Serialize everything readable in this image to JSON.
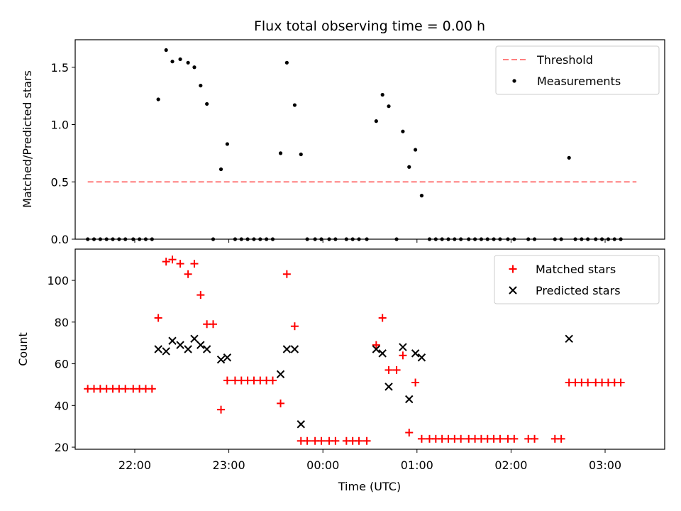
{
  "figure": {
    "title": "Flux total observing time = 0.00 h"
  },
  "chart_data": [
    {
      "type": "scatter",
      "ylabel": "Matched/Predicted stars",
      "xlabel": "",
      "xlim": [
        "21:22",
        "03:38"
      ],
      "ylim": [
        0,
        1.74
      ],
      "yticks": [
        0.0,
        0.5,
        1.0,
        1.5
      ],
      "ytick_labels": [
        "0.0",
        "0.5",
        "1.0",
        "1.5"
      ],
      "grid": false,
      "legend_position": "top-right",
      "series": [
        {
          "name": "Threshold",
          "kind": "dashed-line",
          "color": "#ff7f7f",
          "x": [
            "21:30",
            "03:20"
          ],
          "y": [
            0.5,
            0.5
          ]
        },
        {
          "name": "Measurements",
          "kind": "dot",
          "color": "#000000",
          "points": [
            [
              "21:30",
              0.0
            ],
            [
              "21:34",
              0.0
            ],
            [
              "21:38",
              0.0
            ],
            [
              "21:42",
              0.0
            ],
            [
              "21:46",
              0.0
            ],
            [
              "21:50",
              0.0
            ],
            [
              "21:54",
              0.0
            ],
            [
              "21:59",
              0.0
            ],
            [
              "22:03",
              0.0
            ],
            [
              "22:07",
              0.0
            ],
            [
              "22:11",
              0.0
            ],
            [
              "22:15",
              1.22
            ],
            [
              "22:20",
              1.65
            ],
            [
              "22:24",
              1.55
            ],
            [
              "22:29",
              1.57
            ],
            [
              "22:34",
              1.54
            ],
            [
              "22:38",
              1.5
            ],
            [
              "22:42",
              1.34
            ],
            [
              "22:46",
              1.18
            ],
            [
              "22:50",
              0.0
            ],
            [
              "22:55",
              0.61
            ],
            [
              "22:59",
              0.83
            ],
            [
              "23:04",
              0.0
            ],
            [
              "23:08",
              0.0
            ],
            [
              "23:12",
              0.0
            ],
            [
              "23:16",
              0.0
            ],
            [
              "23:20",
              0.0
            ],
            [
              "23:24",
              0.0
            ],
            [
              "23:28",
              0.0
            ],
            [
              "23:33",
              0.75
            ],
            [
              "23:37",
              1.54
            ],
            [
              "23:42",
              1.17
            ],
            [
              "23:46",
              0.74
            ],
            [
              "23:50",
              0.0
            ],
            [
              "23:55",
              0.0
            ],
            [
              "23:59",
              0.0
            ],
            [
              "00:04",
              0.0
            ],
            [
              "00:08",
              0.0
            ],
            [
              "00:15",
              0.0
            ],
            [
              "00:19",
              0.0
            ],
            [
              "00:23",
              0.0
            ],
            [
              "00:28",
              0.0
            ],
            [
              "00:34",
              1.03
            ],
            [
              "00:38",
              1.26
            ],
            [
              "00:42",
              1.16
            ],
            [
              "00:47",
              0.0
            ],
            [
              "00:51",
              0.94
            ],
            [
              "00:55",
              0.63
            ],
            [
              "00:59",
              0.78
            ],
            [
              "01:03",
              0.38
            ],
            [
              "01:08",
              0.0
            ],
            [
              "01:12",
              0.0
            ],
            [
              "01:16",
              0.0
            ],
            [
              "01:20",
              0.0
            ],
            [
              "01:24",
              0.0
            ],
            [
              "01:28",
              0.0
            ],
            [
              "01:33",
              0.0
            ],
            [
              "01:37",
              0.0
            ],
            [
              "01:41",
              0.0
            ],
            [
              "01:45",
              0.0
            ],
            [
              "01:49",
              0.0
            ],
            [
              "01:53",
              0.0
            ],
            [
              "01:58",
              0.0
            ],
            [
              "02:02",
              0.0
            ],
            [
              "02:11",
              0.0
            ],
            [
              "02:15",
              0.0
            ],
            [
              "02:28",
              0.0
            ],
            [
              "02:32",
              0.0
            ],
            [
              "02:37",
              0.71
            ],
            [
              "02:41",
              0.0
            ],
            [
              "02:45",
              0.0
            ],
            [
              "02:49",
              0.0
            ],
            [
              "02:54",
              0.0
            ],
            [
              "02:58",
              0.0
            ],
            [
              "03:02",
              0.0
            ],
            [
              "03:06",
              0.0
            ],
            [
              "03:10",
              0.0
            ]
          ]
        }
      ]
    },
    {
      "type": "scatter",
      "ylabel": "Count",
      "xlabel": "Time (UTC)",
      "xlim": [
        "21:22",
        "03:38"
      ],
      "ylim": [
        19,
        115
      ],
      "yticks": [
        20,
        40,
        60,
        80,
        100
      ],
      "ytick_labels": [
        "20",
        "40",
        "60",
        "80",
        "100"
      ],
      "xticks": [
        "22:00",
        "23:00",
        "00:00",
        "01:00",
        "02:00",
        "03:00"
      ],
      "xtick_labels": [
        "22:00",
        "23:00",
        "00:00",
        "01:00",
        "02:00",
        "03:00"
      ],
      "grid": false,
      "legend_position": "top-right",
      "series": [
        {
          "name": "Matched stars",
          "kind": "plus",
          "color": "#ff0000",
          "points": [
            [
              "21:30",
              48
            ],
            [
              "21:34",
              48
            ],
            [
              "21:38",
              48
            ],
            [
              "21:42",
              48
            ],
            [
              "21:46",
              48
            ],
            [
              "21:50",
              48
            ],
            [
              "21:54",
              48
            ],
            [
              "21:59",
              48
            ],
            [
              "22:03",
              48
            ],
            [
              "22:07",
              48
            ],
            [
              "22:11",
              48
            ],
            [
              "22:15",
              82
            ],
            [
              "22:20",
              109
            ],
            [
              "22:24",
              110
            ],
            [
              "22:29",
              108
            ],
            [
              "22:34",
              103
            ],
            [
              "22:38",
              108
            ],
            [
              "22:42",
              93
            ],
            [
              "22:46",
              79
            ],
            [
              "22:50",
              79
            ],
            [
              "22:55",
              38
            ],
            [
              "22:59",
              52
            ],
            [
              "23:04",
              52
            ],
            [
              "23:08",
              52
            ],
            [
              "23:12",
              52
            ],
            [
              "23:16",
              52
            ],
            [
              "23:20",
              52
            ],
            [
              "23:24",
              52
            ],
            [
              "23:28",
              52
            ],
            [
              "23:33",
              41
            ],
            [
              "23:37",
              103
            ],
            [
              "23:42",
              78
            ],
            [
              "23:46",
              23
            ],
            [
              "23:50",
              23
            ],
            [
              "23:55",
              23
            ],
            [
              "23:59",
              23
            ],
            [
              "00:04",
              23
            ],
            [
              "00:08",
              23
            ],
            [
              "00:15",
              23
            ],
            [
              "00:19",
              23
            ],
            [
              "00:23",
              23
            ],
            [
              "00:28",
              23
            ],
            [
              "00:34",
              69
            ],
            [
              "00:38",
              82
            ],
            [
              "00:42",
              57
            ],
            [
              "00:47",
              57
            ],
            [
              "00:51",
              64
            ],
            [
              "00:55",
              27
            ],
            [
              "00:59",
              51
            ],
            [
              "01:03",
              24
            ],
            [
              "01:08",
              24
            ],
            [
              "01:12",
              24
            ],
            [
              "01:16",
              24
            ],
            [
              "01:20",
              24
            ],
            [
              "01:24",
              24
            ],
            [
              "01:28",
              24
            ],
            [
              "01:33",
              24
            ],
            [
              "01:37",
              24
            ],
            [
              "01:41",
              24
            ],
            [
              "01:45",
              24
            ],
            [
              "01:49",
              24
            ],
            [
              "01:53",
              24
            ],
            [
              "01:58",
              24
            ],
            [
              "02:02",
              24
            ],
            [
              "02:11",
              24
            ],
            [
              "02:15",
              24
            ],
            [
              "02:28",
              24
            ],
            [
              "02:32",
              24
            ],
            [
              "02:37",
              51
            ],
            [
              "02:41",
              51
            ],
            [
              "02:45",
              51
            ],
            [
              "02:49",
              51
            ],
            [
              "02:54",
              51
            ],
            [
              "02:58",
              51
            ],
            [
              "03:02",
              51
            ],
            [
              "03:06",
              51
            ],
            [
              "03:10",
              51
            ]
          ]
        },
        {
          "name": "Predicted stars",
          "kind": "cross",
          "color": "#000000",
          "points": [
            [
              "22:15",
              67
            ],
            [
              "22:20",
              66
            ],
            [
              "22:24",
              71
            ],
            [
              "22:29",
              69
            ],
            [
              "22:34",
              67
            ],
            [
              "22:38",
              72
            ],
            [
              "22:42",
              69
            ],
            [
              "22:46",
              67
            ],
            [
              "22:55",
              62
            ],
            [
              "22:59",
              63
            ],
            [
              "23:33",
              55
            ],
            [
              "23:37",
              67
            ],
            [
              "23:42",
              67
            ],
            [
              "23:46",
              31
            ],
            [
              "00:34",
              67
            ],
            [
              "00:38",
              65
            ],
            [
              "00:42",
              49
            ],
            [
              "00:51",
              68
            ],
            [
              "00:55",
              43
            ],
            [
              "00:59",
              65
            ],
            [
              "01:03",
              63
            ],
            [
              "02:37",
              72
            ]
          ]
        }
      ]
    }
  ]
}
